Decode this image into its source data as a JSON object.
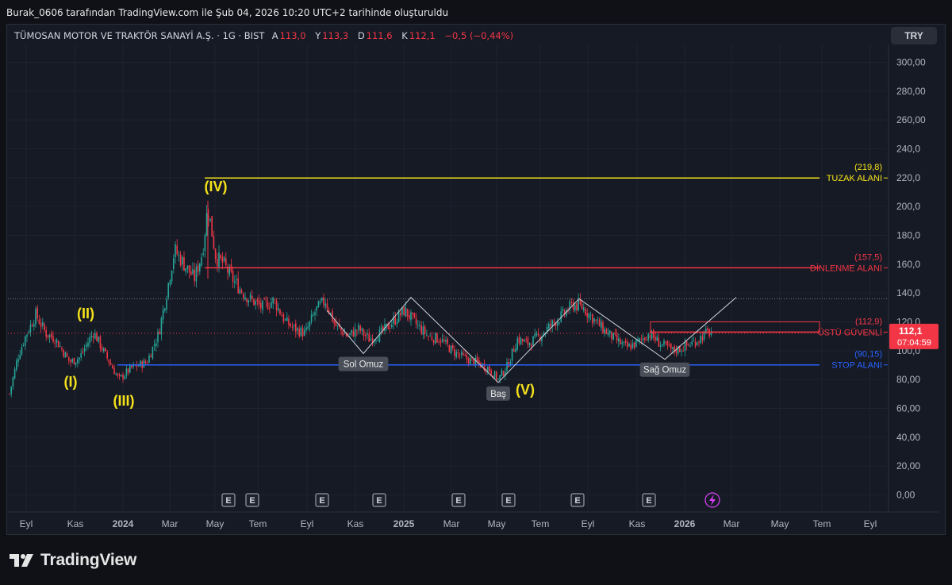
{
  "header": {
    "created_text": "Burak_0606 tarafından TradingView.com ile Şub 04, 2026 10:20 UTC+2 tarihinde oluşturuldu"
  },
  "legend": {
    "symbol": "TÜMOSAN MOTOR VE TRAKTÖR SANAYİ A.Ş. · 1G · BIST",
    "open_label": "A",
    "open": "113,0",
    "high_label": "Y",
    "high": "113,3",
    "low_label": "D",
    "low": "111,6",
    "close_label": "K",
    "close": "112,1",
    "change": "−0,5 (−0,44%)"
  },
  "currency": "TRY",
  "price_axis": [
    "300,00",
    "280,00",
    "260,00",
    "240,0",
    "220,0",
    "200,0",
    "180,0",
    "160,0",
    "140,0",
    "120,0",
    "100,0",
    "80,00",
    "60,00",
    "40,00",
    "20,00",
    "0,00"
  ],
  "price_values": [
    300,
    280,
    260,
    240,
    220,
    200,
    180,
    160,
    140,
    120,
    100,
    80,
    60,
    40,
    20,
    0
  ],
  "time_axis": [
    {
      "label": "Eyl",
      "bold": false
    },
    {
      "label": "Kas",
      "bold": false
    },
    {
      "label": "2024",
      "bold": true
    },
    {
      "label": "Mar",
      "bold": false
    },
    {
      "label": "May",
      "bold": false
    },
    {
      "label": "Tem",
      "bold": false
    },
    {
      "label": "Eyl",
      "bold": false
    },
    {
      "label": "Kas",
      "bold": false
    },
    {
      "label": "2025",
      "bold": true
    },
    {
      "label": "Mar",
      "bold": false
    },
    {
      "label": "May",
      "bold": false
    },
    {
      "label": "Tem",
      "bold": false
    },
    {
      "label": "Eyl",
      "bold": false
    },
    {
      "label": "Kas",
      "bold": false
    },
    {
      "label": "2026",
      "bold": true
    },
    {
      "label": "Mar",
      "bold": false
    },
    {
      "label": "May",
      "bold": false
    },
    {
      "label": "Tem",
      "bold": false
    },
    {
      "label": "Eyl",
      "bold": false
    }
  ],
  "levels": [
    {
      "name": "TUZAK ALANI",
      "value": 219.8,
      "value_label": "(219,8)",
      "color": "#f5e21a"
    },
    {
      "name": "DİNLENME ALANI",
      "value": 157.5,
      "value_label": "(157,5)",
      "color": "#f23645"
    },
    {
      "name": "ÜSTÜ GÜVENLİ",
      "value": 112.9,
      "value_label": "(112,9)",
      "color": "#f23645"
    },
    {
      "name": "STOP ALANI",
      "value": 90.15,
      "value_label": "(90,15)",
      "color": "#2962ff"
    }
  ],
  "current_price": {
    "value": "112,1",
    "countdown": "07:04:59",
    "level": 112.1
  },
  "waves": [
    "(I)",
    "(II)",
    "(III)",
    "(IV)",
    "(V)"
  ],
  "pattern_labels": [
    "Sol Omuz",
    "Baş",
    "Sağ Omuz"
  ],
  "earnings_marker": "E",
  "dividend_icon": "lightning-icon",
  "brand": "TradingView",
  "colors": {
    "up": "#26a69a",
    "down": "#f23645",
    "bg": "#161a25",
    "yellow": "#f5e21a",
    "red": "#f23645",
    "blue": "#2962ff"
  }
}
